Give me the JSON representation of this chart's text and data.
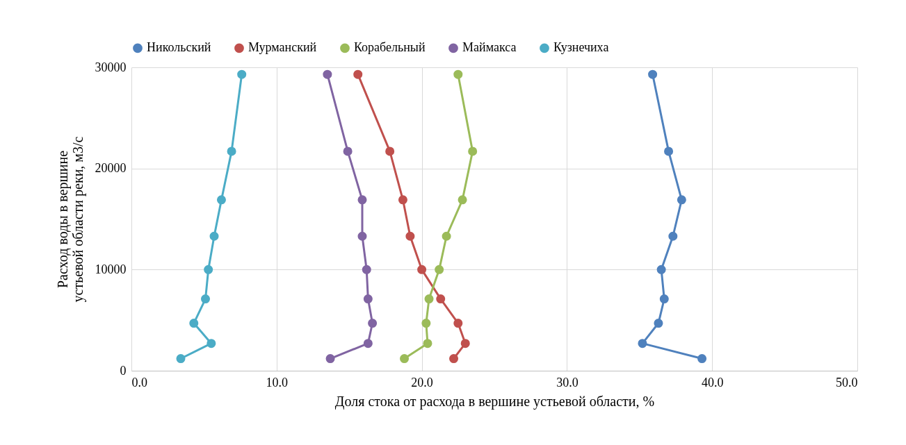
{
  "chart_data": {
    "type": "line",
    "xlabel": "Доля стока от расхода в вершине устьевой области, %",
    "ylabel": "Расход воды в вершине устьевой области реки, м3/с",
    "xlim": [
      0,
      50
    ],
    "xticks": [
      {
        "value": 0,
        "label": "0.0"
      },
      {
        "value": 10,
        "label": "10.0"
      },
      {
        "value": 20,
        "label": "20.0"
      },
      {
        "value": 30,
        "label": "30.0"
      },
      {
        "value": 40,
        "label": "40.0"
      },
      {
        "value": 50,
        "label": "50.0"
      }
    ],
    "ylim": [
      0,
      30000
    ],
    "yticks": [
      0,
      10000,
      20000,
      30000
    ],
    "grid": true,
    "legend": "top",
    "marker": "circle",
    "line_style": "solid",
    "series": [
      {
        "name": "Никольский",
        "color": "#4f81bd",
        "x": [
          35.9,
          37.0,
          37.9,
          37.3,
          36.5,
          36.7,
          36.3,
          35.2,
          39.3
        ],
        "values": [
          29300,
          21700,
          16900,
          13300,
          10000,
          7100,
          4700,
          2700,
          1200
        ]
      },
      {
        "name": "Мурманский",
        "color": "#c0504d",
        "x": [
          15.6,
          17.8,
          18.7,
          19.2,
          20.0,
          21.3,
          22.5,
          23.0,
          22.2
        ],
        "values": [
          29300,
          21700,
          16900,
          13300,
          10000,
          7100,
          4700,
          2700,
          1200
        ]
      },
      {
        "name": "Корабельный",
        "color": "#9bbb59",
        "x": [
          22.5,
          23.5,
          22.8,
          21.7,
          21.2,
          20.5,
          20.3,
          20.4,
          18.8
        ],
        "values": [
          29300,
          21700,
          16900,
          13300,
          10000,
          7100,
          4700,
          2700,
          1200
        ]
      },
      {
        "name": "Маймакса",
        "color": "#8064a2",
        "x": [
          13.5,
          14.9,
          15.9,
          15.9,
          16.2,
          16.3,
          16.6,
          16.3,
          13.7
        ],
        "values": [
          29300,
          21700,
          16900,
          13300,
          10000,
          7100,
          4700,
          2700,
          1200
        ]
      },
      {
        "name": "Кузнечиха",
        "color": "#4bacc6",
        "x": [
          7.6,
          6.9,
          6.2,
          5.7,
          5.3,
          5.1,
          4.3,
          5.5,
          3.4
        ],
        "values": [
          29300,
          21700,
          16900,
          13300,
          10000,
          7100,
          4700,
          2700,
          1200
        ]
      }
    ]
  }
}
